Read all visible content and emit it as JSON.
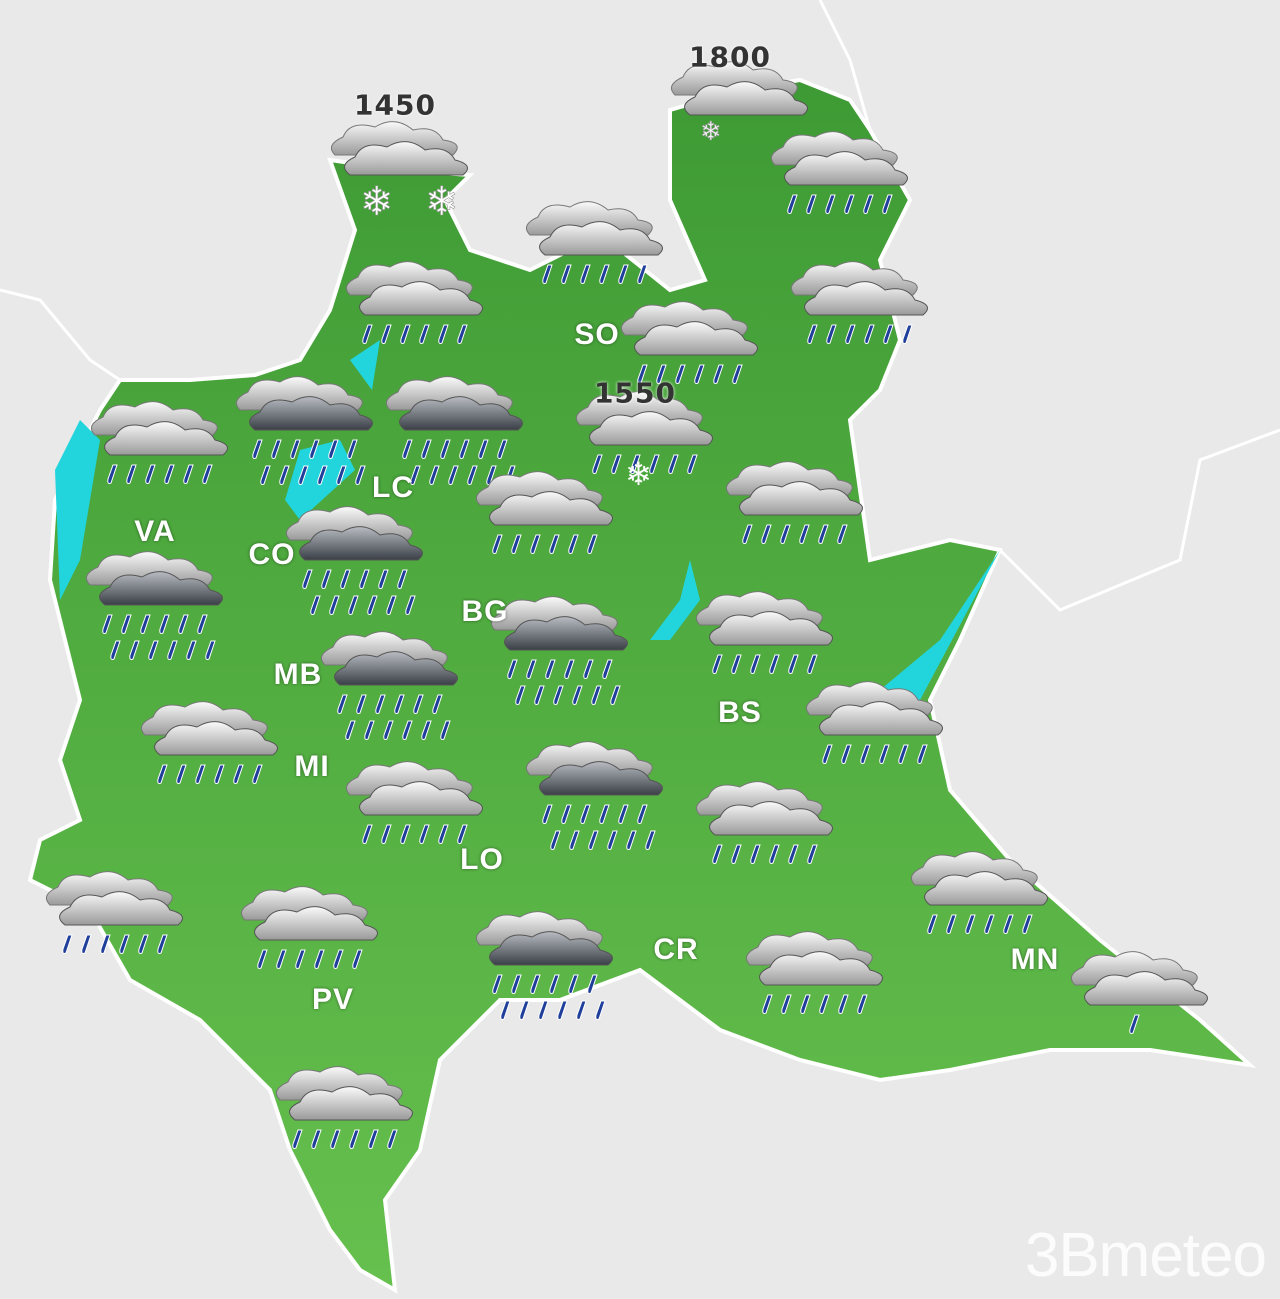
{
  "map": {
    "region": "Lombardia",
    "colors": {
      "land": "#4fae3c",
      "land_dark": "#3c8f2e",
      "lake": "#22d5dc",
      "background": "#e9e9e9",
      "drop": "#1f3f9a"
    },
    "snow_levels": [
      {
        "value": "1450"
      },
      {
        "value": "1800"
      },
      {
        "value": "1550"
      }
    ],
    "provinces": [
      "SO",
      "LC",
      "VA",
      "CO",
      "BG",
      "MB",
      "BS",
      "MI",
      "LO",
      "CR",
      "MN",
      "PV"
    ],
    "icons": [
      "cloud-snow-icon",
      "cloud-snow-icon",
      "cloud-rain-icon",
      "cloud-rain-icon",
      "cloud-rain-icon",
      "cloud-rain-icon",
      "cloud-rain-icon",
      "cloud-rain-snow-icon",
      "cloud-rain-icon",
      "cloud-heavy-rain-icon",
      "cloud-heavy-rain-icon",
      "cloud-rain-icon",
      "cloud-rain-icon",
      "cloud-heavy-rain-icon",
      "cloud-heavy-rain-icon",
      "cloud-heavy-rain-icon",
      "cloud-rain-icon",
      "cloud-heavy-rain-icon",
      "cloud-rain-icon",
      "cloud-rain-icon",
      "cloud-heavy-rain-icon",
      "cloud-rain-icon",
      "cloud-rain-icon",
      "cloud-rain-icon",
      "cloud-rain-icon",
      "cloud-rain-icon",
      "cloud-heavy-rain-icon",
      "cloud-rain-icon",
      "cloud-light-rain-icon",
      "cloud-rain-icon"
    ]
  },
  "logo": {
    "text": "3Bmeteo"
  }
}
